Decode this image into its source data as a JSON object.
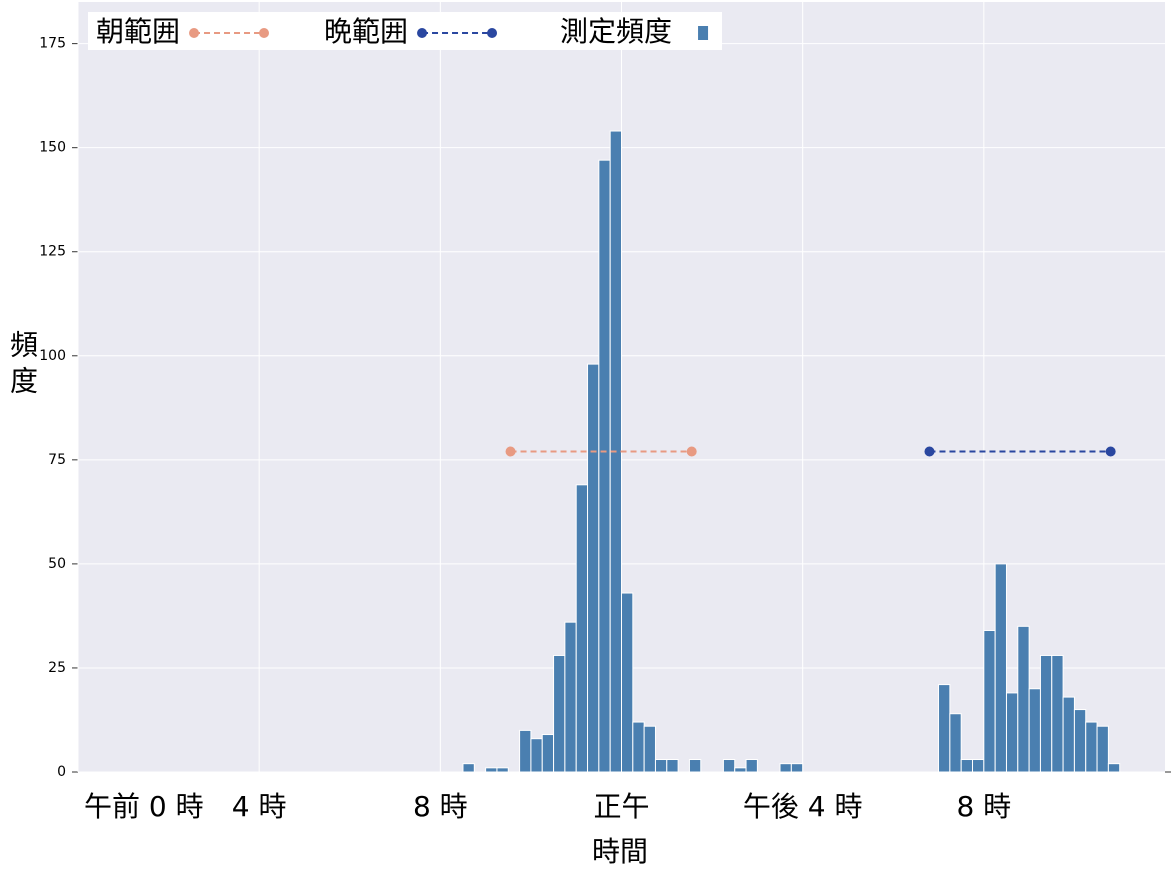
{
  "chart_data": {
    "type": "histogram",
    "xlabel": "時間",
    "ylabel": "頻度",
    "bins": [
      8.5,
      8.75,
      9.0,
      9.25,
      9.5,
      9.75,
      10.0,
      10.25,
      10.5,
      10.75,
      11.0,
      11.25,
      11.5,
      11.75,
      12.0,
      12.25,
      12.5,
      12.75,
      13.0,
      13.25,
      13.5,
      13.75,
      14.0,
      14.25,
      14.5,
      14.75,
      15.0,
      15.25,
      15.5,
      15.75,
      16.0,
      16.25,
      16.5,
      16.75,
      17.0,
      17.25,
      17.5,
      17.75,
      18.0,
      18.25,
      18.5,
      18.75,
      19.0,
      19.25,
      19.5,
      19.75,
      20.0,
      20.25,
      20.5,
      20.75,
      21.0,
      21.25,
      21.5,
      21.75,
      22.0,
      22.25,
      22.5,
      22.75,
      23.0
    ],
    "series": [
      {
        "name": "測定頻度",
        "color": "#4a7fb0",
        "values": [
          2,
          0,
          1,
          1,
          0,
          10,
          8,
          9,
          28,
          36,
          69,
          98,
          147,
          154,
          43,
          12,
          11,
          3,
          3,
          0,
          3,
          0,
          0,
          3,
          1,
          3,
          0,
          0,
          2,
          2,
          0,
          0,
          0,
          0,
          0,
          0,
          0,
          0,
          0,
          0,
          0,
          0,
          21,
          14,
          3,
          3,
          34,
          50,
          19,
          35,
          20,
          28,
          28,
          18,
          15,
          12,
          11,
          2
        ]
      }
    ],
    "lines": [
      {
        "name": "朝範囲",
        "color": "#e89a82",
        "x": [
          9.55,
          13.55
        ],
        "values": [
          77,
          77
        ]
      },
      {
        "name": "晩範囲",
        "color": "#2a47a0",
        "x": [
          18.8,
          22.8
        ],
        "values": [
          77,
          77
        ]
      }
    ],
    "xlim": [
      0,
      24
    ],
    "xticks": [
      {
        "value": 0,
        "label": "午前 0 時"
      },
      {
        "value": 4,
        "label": "4 時"
      },
      {
        "value": 8,
        "label": "8 時"
      },
      {
        "value": 12,
        "label": "正午"
      },
      {
        "value": 16,
        "label": "午後 4 時"
      },
      {
        "value": 20,
        "label": "8 時"
      }
    ],
    "ylim": [
      0,
      185
    ],
    "yticks": [
      0,
      25,
      50,
      75,
      100,
      125,
      150,
      175
    ],
    "grid": true
  }
}
